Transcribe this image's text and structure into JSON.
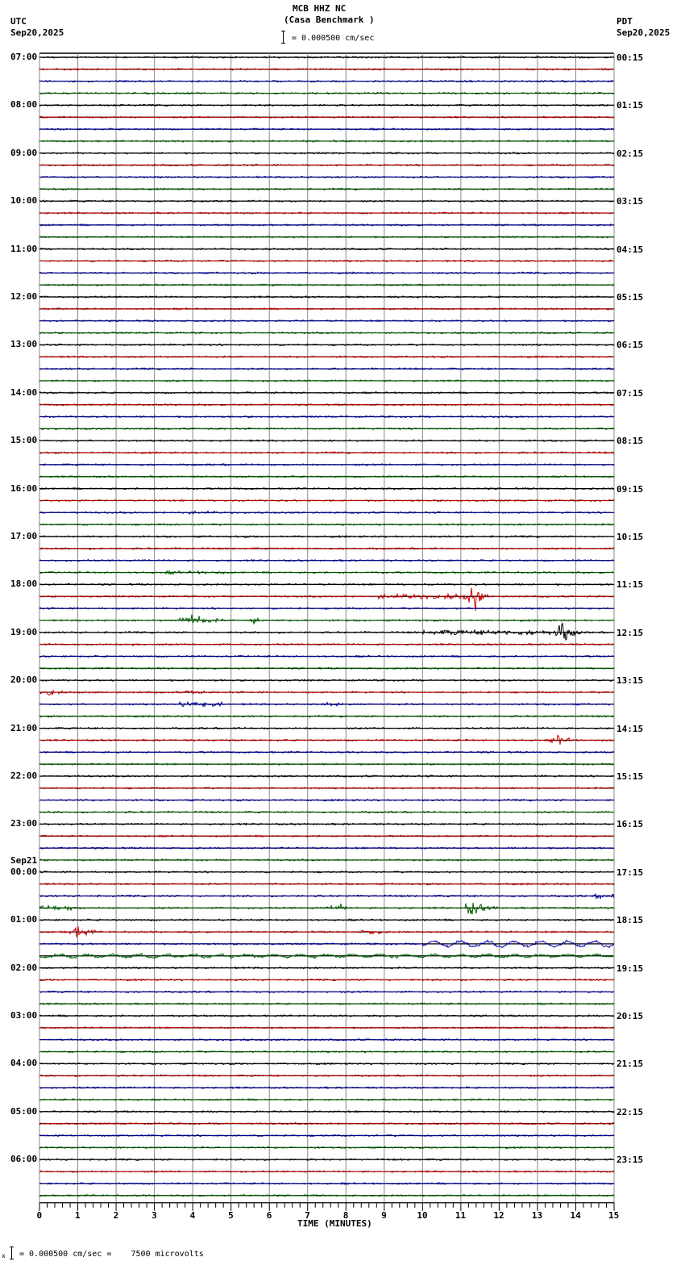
{
  "header": {
    "station": "MCB HHZ NC",
    "location": "(Casa Benchmark )",
    "scale_text": "= 0.000500 cm/sec",
    "left_tz": "UTC",
    "left_date": "Sep20,2025",
    "right_tz": "PDT",
    "right_date": "Sep20,2025"
  },
  "footer": {
    "scale_prefix": "x",
    "scale_text": "= 0.000500 cm/sec =    7500 microvolts"
  },
  "colors": {
    "trace_cycle": [
      "#000000",
      "#cc0000",
      "#0000aa",
      "#006600"
    ],
    "grid": "#888888",
    "axis": "#000000"
  },
  "chart_data": {
    "type": "line",
    "title": "MCB HHZ NC (Casa Benchmark )",
    "subtitle": "= 0.000500 cm/sec",
    "xlabel": "TIME (MINUTES)",
    "ylabel": "",
    "xlim": [
      0,
      15
    ],
    "x_ticks": [
      "0",
      "1",
      "2",
      "3",
      "4",
      "5",
      "6",
      "7",
      "8",
      "9",
      "10",
      "11",
      "12",
      "13",
      "14",
      "15"
    ],
    "traces_per_hour": 4,
    "minutes_per_trace": 15,
    "trace_count": 96,
    "grid": true,
    "left_axis_labels": [
      {
        "row": 0,
        "text": "07:00"
      },
      {
        "row": 4,
        "text": "08:00"
      },
      {
        "row": 8,
        "text": "09:00"
      },
      {
        "row": 12,
        "text": "10:00"
      },
      {
        "row": 16,
        "text": "11:00"
      },
      {
        "row": 20,
        "text": "12:00"
      },
      {
        "row": 24,
        "text": "13:00"
      },
      {
        "row": 28,
        "text": "14:00"
      },
      {
        "row": 32,
        "text": "15:00"
      },
      {
        "row": 36,
        "text": "16:00"
      },
      {
        "row": 40,
        "text": "17:00"
      },
      {
        "row": 44,
        "text": "18:00"
      },
      {
        "row": 48,
        "text": "19:00"
      },
      {
        "row": 52,
        "text": "20:00"
      },
      {
        "row": 56,
        "text": "21:00"
      },
      {
        "row": 60,
        "text": "22:00"
      },
      {
        "row": 64,
        "text": "23:00"
      },
      {
        "row": 68,
        "text": "00:00",
        "date": "Sep21"
      },
      {
        "row": 72,
        "text": "01:00"
      },
      {
        "row": 76,
        "text": "02:00"
      },
      {
        "row": 80,
        "text": "03:00"
      },
      {
        "row": 84,
        "text": "04:00"
      },
      {
        "row": 88,
        "text": "05:00"
      },
      {
        "row": 92,
        "text": "06:00"
      }
    ],
    "right_axis_labels": [
      {
        "row": 0,
        "text": "00:15"
      },
      {
        "row": 4,
        "text": "01:15"
      },
      {
        "row": 8,
        "text": "02:15"
      },
      {
        "row": 12,
        "text": "03:15"
      },
      {
        "row": 16,
        "text": "04:15"
      },
      {
        "row": 20,
        "text": "05:15"
      },
      {
        "row": 24,
        "text": "06:15"
      },
      {
        "row": 28,
        "text": "07:15"
      },
      {
        "row": 32,
        "text": "08:15"
      },
      {
        "row": 36,
        "text": "09:15"
      },
      {
        "row": 40,
        "text": "10:15"
      },
      {
        "row": 44,
        "text": "11:15"
      },
      {
        "row": 48,
        "text": "12:15"
      },
      {
        "row": 52,
        "text": "13:15"
      },
      {
        "row": 56,
        "text": "14:15"
      },
      {
        "row": 60,
        "text": "15:15"
      },
      {
        "row": 64,
        "text": "16:15"
      },
      {
        "row": 68,
        "text": "17:15"
      },
      {
        "row": 72,
        "text": "18:15"
      },
      {
        "row": 76,
        "text": "19:15"
      },
      {
        "row": 80,
        "text": "20:15"
      },
      {
        "row": 84,
        "text": "21:15"
      },
      {
        "row": 88,
        "text": "22:15"
      },
      {
        "row": 92,
        "text": "23:15"
      }
    ],
    "events": [
      {
        "row": 38,
        "start_min": 3.6,
        "end_min": 4.6,
        "amp": 2,
        "note": "minor noise"
      },
      {
        "row": 43,
        "start_min": 3.2,
        "end_min": 4.8,
        "amp": 2,
        "note": "minor noise"
      },
      {
        "row": 45,
        "start_min": 8.8,
        "end_min": 11.0,
        "amp": 3,
        "note": "precursor"
      },
      {
        "row": 45,
        "start_min": 11.0,
        "end_min": 11.7,
        "amp": 22,
        "peak_min": 11.35,
        "note": "largest event"
      },
      {
        "row": 47,
        "start_min": 3.6,
        "end_min": 4.8,
        "amp": 9,
        "peak_min": 4.0,
        "note": "event"
      },
      {
        "row": 47,
        "start_min": 5.4,
        "end_min": 5.8,
        "amp": 8,
        "peak_min": 5.6,
        "note": "event"
      },
      {
        "row": 48,
        "start_min": 10.0,
        "end_min": 13.4,
        "amp": 3,
        "note": "noise"
      },
      {
        "row": 48,
        "start_min": 13.4,
        "end_min": 14.2,
        "amp": 14,
        "peak_min": 13.65,
        "note": "event"
      },
      {
        "row": 49,
        "start_min": 2.3,
        "end_min": 2.6,
        "amp": 4,
        "peak_min": 2.5,
        "note": "spike"
      },
      {
        "row": 53,
        "start_min": 0.0,
        "end_min": 0.6,
        "amp": 5,
        "peak_min": 0.3,
        "note": "event"
      },
      {
        "row": 53,
        "start_min": 3.8,
        "end_min": 4.3,
        "amp": 4,
        "peak_min": 4.0,
        "note": "event"
      },
      {
        "row": 54,
        "start_min": 3.6,
        "end_min": 4.8,
        "amp": 3,
        "note": "event"
      },
      {
        "row": 54,
        "start_min": 7.5,
        "end_min": 7.9,
        "amp": 3,
        "note": "event"
      },
      {
        "row": 57,
        "start_min": 13.3,
        "end_min": 14.0,
        "amp": 8,
        "peak_min": 13.6,
        "note": "event"
      },
      {
        "row": 70,
        "start_min": 14.5,
        "end_min": 15.0,
        "amp": 3,
        "note": "drift"
      },
      {
        "row": 71,
        "start_min": 0.0,
        "end_min": 1.0,
        "amp": 3,
        "note": "noise"
      },
      {
        "row": 71,
        "start_min": 7.5,
        "end_min": 8.0,
        "amp": 9,
        "peak_min": 7.8,
        "note": "event"
      },
      {
        "row": 71,
        "start_min": 11.1,
        "end_min": 12.0,
        "amp": 9,
        "peak_min": 11.3,
        "note": "event"
      },
      {
        "row": 73,
        "start_min": 0.6,
        "end_min": 1.5,
        "amp": 10,
        "peak_min": 1.05,
        "note": "event"
      },
      {
        "row": 73,
        "start_min": 8.4,
        "end_min": 9.0,
        "amp": 3,
        "note": "event"
      },
      {
        "row": 74,
        "start_min": 10.0,
        "end_min": 15.0,
        "amp": 4,
        "note": "long-period wobble"
      },
      {
        "row": 75,
        "start_min": 0.0,
        "end_min": 15.0,
        "amp": 2,
        "note": "long-period wobble"
      }
    ]
  }
}
